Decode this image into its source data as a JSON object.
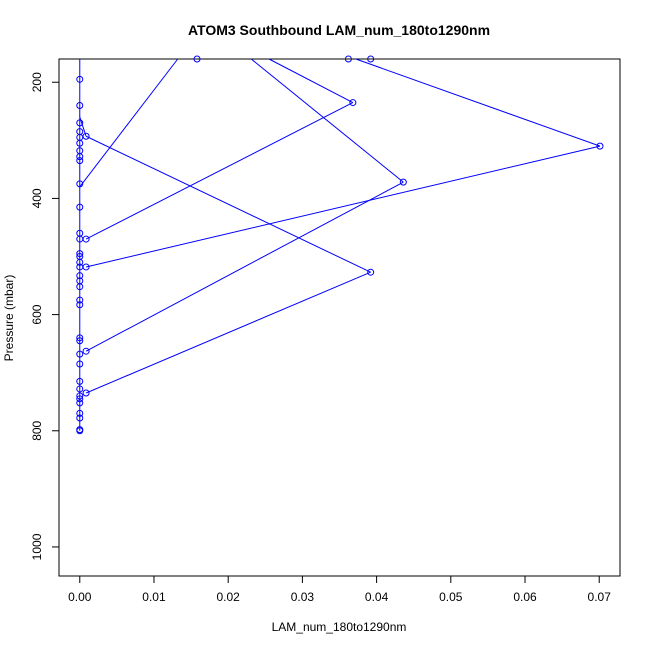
{
  "chart_data": {
    "type": "line",
    "title": "ATOM3 Southbound LAM_num_180to1290nm",
    "xlabel": "LAM_num_180to1290nm",
    "ylabel": "Pressure (mbar)",
    "xlim": [
      -0.0028,
      0.0728
    ],
    "ylim": [
      1050,
      160
    ],
    "y_reversed": true,
    "x_ticks": [
      0.0,
      0.01,
      0.02,
      0.03,
      0.04,
      0.05,
      0.06,
      0.07
    ],
    "x_tick_labels": [
      "0.00",
      "0.01",
      "0.02",
      "0.03",
      "0.04",
      "0.05",
      "0.06",
      "0.07"
    ],
    "y_ticks": [
      200,
      400,
      600,
      800,
      1000
    ],
    "y_tick_labels": [
      "200",
      "400",
      "600",
      "800",
      "1000"
    ],
    "grid": false,
    "series_color": "#0000ff",
    "series": [
      {
        "marker": "open-circle",
        "points": [
          [
            0.0,
            800
          ],
          [
            0.0,
            798
          ],
          [
            0.0,
            778
          ],
          [
            0.0,
            770
          ],
          [
            0.0,
            752
          ],
          [
            0.0,
            745
          ],
          [
            0.0,
            740
          ],
          [
            0.0,
            728
          ],
          [
            0.0,
            715
          ],
          [
            0.0,
            685
          ],
          [
            0.0,
            668
          ],
          [
            0.0,
            645
          ],
          [
            0.0,
            640
          ],
          [
            0.0,
            583
          ],
          [
            0.0,
            575
          ],
          [
            0.0,
            552
          ],
          [
            0.0,
            542
          ],
          [
            0.0,
            533
          ],
          [
            0.0,
            518
          ],
          [
            0.0,
            510
          ],
          [
            0.0,
            500
          ],
          [
            0.0,
            495
          ],
          [
            0.0,
            470
          ],
          [
            0.0,
            460
          ],
          [
            0.0,
            415
          ],
          [
            0.0,
            375
          ],
          [
            0.0,
            335
          ],
          [
            0.0,
            328
          ],
          [
            0.0,
            318
          ],
          [
            0.0,
            305
          ],
          [
            0.0,
            295
          ],
          [
            0.0,
            285
          ],
          [
            0.0,
            270
          ],
          [
            0.0,
            240
          ],
          [
            0.0,
            195
          ],
          [
            0.00085,
            735
          ],
          [
            0.0392,
            527
          ],
          [
            0.00085,
            663
          ],
          [
            0.0436,
            372
          ],
          [
            0.00085,
            518
          ],
          [
            0.0701,
            310
          ],
          [
            0.00085,
            470
          ],
          [
            0.0368,
            235
          ],
          [
            0.00085,
            293
          ],
          [
            0.0158,
            160
          ],
          [
            0.0362,
            160
          ],
          [
            0.0392,
            160
          ]
        ],
        "lines": [
          [
            [
              0.00085,
              735
            ],
            [
              0.0392,
              527
            ]
          ],
          [
            [
              0.0392,
              527
            ],
            [
              0.00085,
              293
            ]
          ],
          [
            [
              0.00085,
              293
            ],
            [
              0.0,
              260
            ]
          ],
          [
            [
              0.00085,
              663
            ],
            [
              0.0436,
              372
            ]
          ],
          [
            [
              0.0436,
              372
            ],
            [
              0.0231,
              160
            ]
          ],
          [
            [
              0.00085,
              518
            ],
            [
              0.0701,
              310
            ]
          ],
          [
            [
              0.0701,
              310
            ],
            [
              0.0372,
              160
            ]
          ],
          [
            [
              0.00085,
              470
            ],
            [
              0.0368,
              235
            ]
          ],
          [
            [
              0.0368,
              235
            ],
            [
              0.0255,
              160
            ]
          ],
          [
            [
              0.0,
              160
            ],
            [
              0.0,
              800
            ]
          ],
          [
            [
              0.0,
              380
            ],
            [
              0.0132,
              160
            ]
          ]
        ]
      }
    ]
  }
}
